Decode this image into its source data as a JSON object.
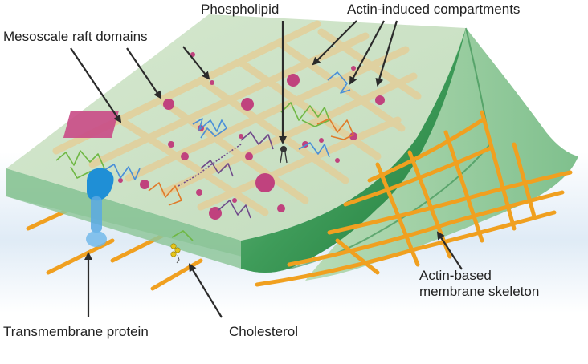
{
  "labels": {
    "phospholipid": "Phospholipid",
    "actin_compartments": "Actin-induced compartments",
    "raft_domains": "Mesoscale raft domains",
    "skeleton_line1": "Actin-based",
    "skeleton_line2": "membrane skeleton",
    "transmembrane": "Transmembrane protein",
    "cholesterol": "Cholesterol"
  },
  "colors": {
    "membrane_top": "#cfe3c9",
    "membrane_edge": "#8dc49a",
    "membrane_dark": "#2e8b4a",
    "grid_lines": "#e3cf9a",
    "raft_dots": "#c0427e",
    "actin_fiber": "#f0a020",
    "protein": "#1f8fd6",
    "cholesterol": "#e6c51a",
    "arrow": "#2b2b2b"
  }
}
